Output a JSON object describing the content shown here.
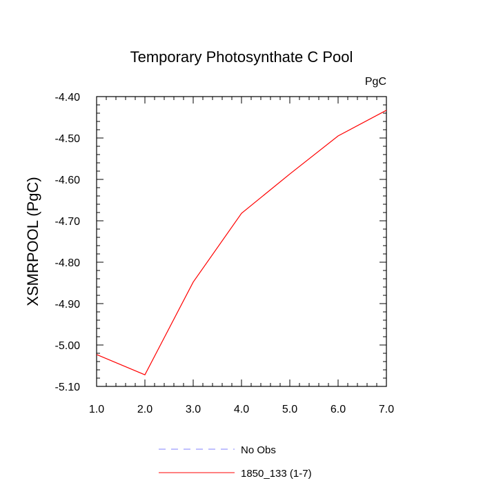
{
  "chart_data": {
    "type": "line",
    "title": "Temporary Photosynthate C Pool",
    "units_label": "PgC",
    "ylabel": "XSMRPOOL  (PgC)",
    "xlabel": "",
    "xlim": [
      1.0,
      7.0
    ],
    "ylim": [
      -5.1,
      -4.4
    ],
    "x_ticks": [
      "1.0",
      "2.0",
      "3.0",
      "4.0",
      "5.0",
      "6.0",
      "7.0"
    ],
    "y_ticks": [
      "-4.40",
      "-4.50",
      "-4.60",
      "-4.70",
      "-4.80",
      "-4.90",
      "-5.00",
      "-5.10"
    ],
    "grid": false,
    "legend_position": "bottom",
    "series": [
      {
        "name": "1850_133 (1-7)",
        "color": "#ff0000",
        "style": "solid",
        "x": [
          1,
          2,
          3,
          4,
          5,
          6,
          7
        ],
        "y": [
          -5.023,
          -5.072,
          -4.848,
          -4.682,
          -4.587,
          -4.495,
          -4.433
        ]
      }
    ],
    "legend": [
      {
        "label": "No Obs",
        "color": "#8080ff",
        "style": "dashed"
      },
      {
        "label": "1850_133 (1-7)",
        "color": "#ff0000",
        "style": "solid"
      }
    ]
  }
}
